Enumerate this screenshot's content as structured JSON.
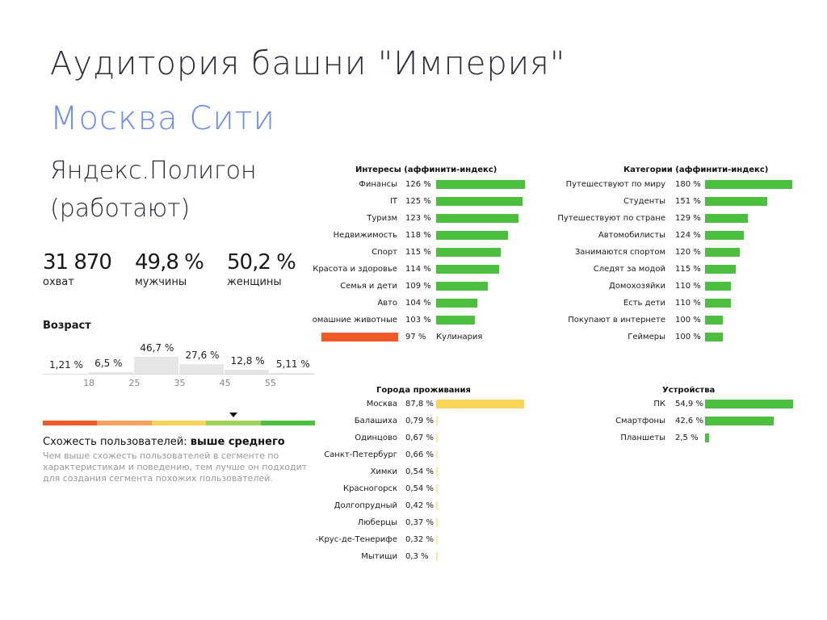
{
  "title": "Аудитория башни \"Империя\"",
  "subtitle": "Москва Сити",
  "source_line1": "Яндекс.Полигон",
  "source_line2": "(работают)",
  "stats": [
    {
      "value": "31 870",
      "label": "охват"
    },
    {
      "value": "49,8 %",
      "label": "мужчины"
    },
    {
      "value": "50,2 %",
      "label": "женщины"
    }
  ],
  "colors": {
    "green": "#4cbf3f",
    "orange": "#f05a28",
    "yellow": "#f9d65a",
    "yellow_light": "#fce79a",
    "age_bar": "#e6e6e6",
    "title_accent": "#6b8cf0"
  },
  "similarity": {
    "label": "Схожесть пользователей: ",
    "value": "выше среднего",
    "description": "Чем выше схожесть пользователей в сегменте по характеристикам и поведению, тем лучше он подходит для создания сегмента похожих пользователей.",
    "scale_colors": [
      "#f05a28",
      "#f6a25c",
      "#f9d65a",
      "#9ed35c",
      "#4cbf3f"
    ],
    "level_index": 3
  },
  "chart_data": [
    {
      "type": "bar",
      "title": "Возраст",
      "categories": [
        "<18",
        "18-25",
        "25-35",
        "35-45",
        "45-55",
        ">55"
      ],
      "values": [
        1.21,
        6.5,
        46.7,
        27.6,
        12.8,
        5.11
      ],
      "value_labels": [
        "1,21 %",
        "6,5 %",
        "46,7 %",
        "27,6 %",
        "12,8 %",
        "5,11 %"
      ],
      "x_ticks": [
        "18",
        "25",
        "35",
        "45",
        "55"
      ]
    },
    {
      "type": "bar",
      "title": "Интересы (аффинити-индекс)",
      "orientation": "horizontal",
      "categories": [
        "Финансы",
        "IT",
        "Туризм",
        "Недвижимость",
        "Спорт",
        "Красота и здоровье",
        "Семья и дети",
        "Авто",
        "омашние животные",
        "Кулинария"
      ],
      "values": [
        126,
        125,
        123,
        118,
        115,
        114,
        109,
        104,
        103,
        97
      ],
      "value_labels": [
        "126 %",
        "125 %",
        "123 %",
        "118 %",
        "115 %",
        "114 %",
        "109 %",
        "104 %",
        "103 %",
        "97 %"
      ]
    },
    {
      "type": "bar",
      "title": "Категории (аффинити-индекс)",
      "orientation": "horizontal",
      "categories": [
        "Путешествуют по миру",
        "Студенты",
        "Путешествуют по стране",
        "Автомобилисты",
        "Занимаются спортом",
        "Следят за модой",
        "Домохозяйки",
        "Есть дети",
        "Покупают в интернете",
        "Геймеры"
      ],
      "values": [
        180,
        151,
        129,
        124,
        120,
        115,
        110,
        110,
        100,
        100
      ],
      "value_labels": [
        "180 %",
        "151 %",
        "129 %",
        "124 %",
        "120 %",
        "115 %",
        "110 %",
        "110 %",
        "100 %",
        "100 %"
      ]
    },
    {
      "type": "bar",
      "title": "Города проживания",
      "orientation": "horizontal",
      "categories": [
        "Москва",
        "Балашиха",
        "Одинцово",
        "Санкт-Петербург",
        "Химки",
        "Красногорск",
        "Долгопрудный",
        "Люберцы",
        "-Крус-де-Тенерифе",
        "Мытищи"
      ],
      "values": [
        87.8,
        0.79,
        0.67,
        0.66,
        0.54,
        0.54,
        0.42,
        0.37,
        0.32,
        0.3
      ],
      "value_labels": [
        "87,8 %",
        "0,79 %",
        "0,67 %",
        "0,66 %",
        "0,54 %",
        "0,54 %",
        "0,42 %",
        "0,37 %",
        "0,32 %",
        "0,3 %"
      ]
    },
    {
      "type": "bar",
      "title": "Устройства",
      "orientation": "horizontal",
      "categories": [
        "ПК",
        "Смартфоны",
        "Планшеты"
      ],
      "values": [
        54.9,
        42.6,
        2.5
      ],
      "value_labels": [
        "54,9 %",
        "42,6 %",
        "2,5 %"
      ]
    }
  ]
}
